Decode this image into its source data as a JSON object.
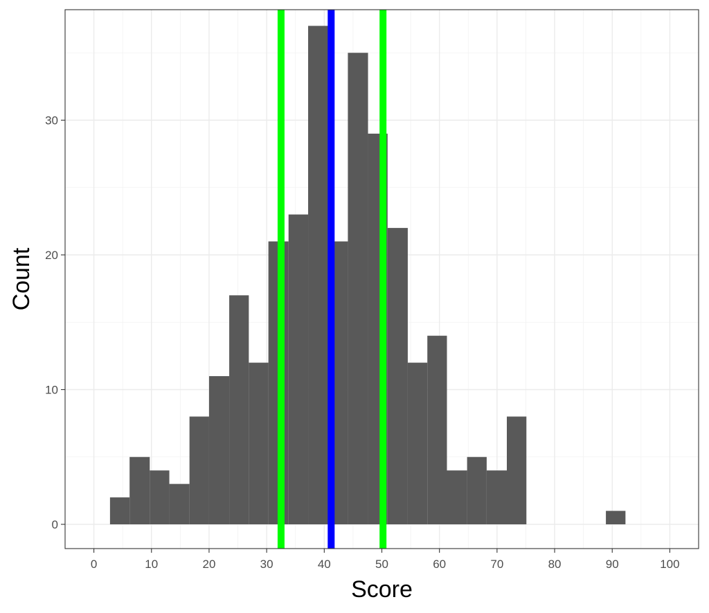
{
  "chart_data": {
    "type": "bar",
    "subtype": "histogram",
    "title": "",
    "xlabel": "Score",
    "ylabel": "Count",
    "xlim": [
      -5,
      105
    ],
    "ylim": [
      -1.8,
      38.2
    ],
    "x_ticks": [
      0,
      10,
      20,
      30,
      40,
      50,
      60,
      70,
      80,
      90,
      100
    ],
    "y_ticks": [
      0,
      10,
      20,
      30
    ],
    "grid": true,
    "bar_color": "#595959",
    "bins": [
      {
        "x0": 2.8,
        "x1": 6.2,
        "count": 2
      },
      {
        "x0": 6.2,
        "x1": 9.7,
        "count": 5
      },
      {
        "x0": 9.7,
        "x1": 13.1,
        "count": 4
      },
      {
        "x0": 13.1,
        "x1": 16.6,
        "count": 3
      },
      {
        "x0": 16.6,
        "x1": 20.0,
        "count": 8
      },
      {
        "x0": 20.0,
        "x1": 23.5,
        "count": 11
      },
      {
        "x0": 23.5,
        "x1": 26.9,
        "count": 17
      },
      {
        "x0": 26.9,
        "x1": 30.3,
        "count": 12
      },
      {
        "x0": 30.3,
        "x1": 33.8,
        "count": 21
      },
      {
        "x0": 33.8,
        "x1": 37.2,
        "count": 23
      },
      {
        "x0": 37.2,
        "x1": 40.7,
        "count": 37
      },
      {
        "x0": 40.7,
        "x1": 44.1,
        "count": 21
      },
      {
        "x0": 44.1,
        "x1": 47.6,
        "count": 35
      },
      {
        "x0": 47.6,
        "x1": 51.0,
        "count": 29
      },
      {
        "x0": 51.0,
        "x1": 54.5,
        "count": 22
      },
      {
        "x0": 54.5,
        "x1": 57.9,
        "count": 12
      },
      {
        "x0": 57.9,
        "x1": 61.3,
        "count": 14
      },
      {
        "x0": 61.3,
        "x1": 64.8,
        "count": 4
      },
      {
        "x0": 64.8,
        "x1": 68.2,
        "count": 5
      },
      {
        "x0": 68.2,
        "x1": 71.7,
        "count": 4
      },
      {
        "x0": 71.7,
        "x1": 75.1,
        "count": 8
      },
      {
        "x0": 88.9,
        "x1": 92.3,
        "count": 1
      }
    ],
    "vlines": [
      {
        "x": 32.5,
        "color": "#00ff00"
      },
      {
        "x": 41.2,
        "color": "#0000ff"
      },
      {
        "x": 50.2,
        "color": "#00ff00"
      }
    ]
  }
}
